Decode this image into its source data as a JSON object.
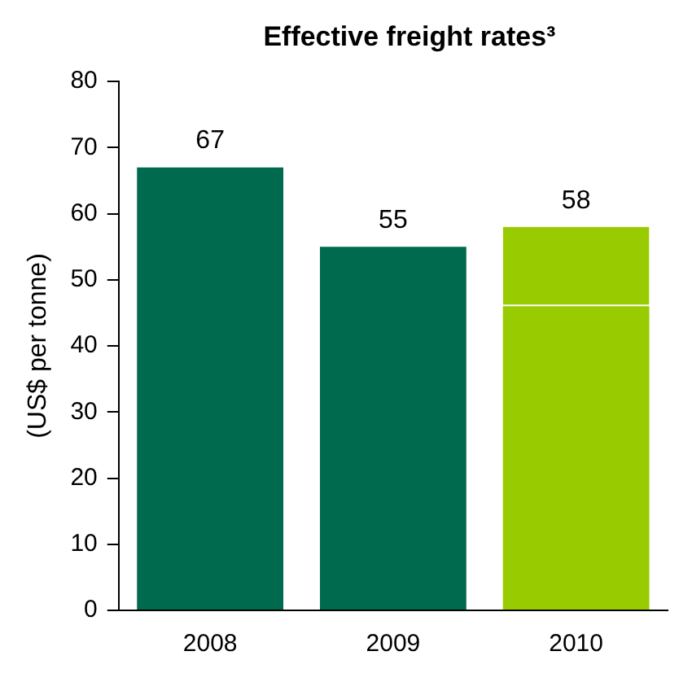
{
  "chart_data": {
    "type": "bar",
    "title": "Effective freight rates³",
    "ylabel": "(US$ per tonne)",
    "categories": [
      "2008",
      "2009",
      "2010"
    ],
    "stacked": true,
    "series": [
      {
        "colors": [
          "#006a4e",
          "#006a4e",
          "#99cc00"
        ],
        "values": [
          67,
          55,
          46
        ]
      },
      {
        "color": "#99cc00",
        "values": [
          null,
          null,
          12
        ]
      }
    ],
    "totals": [
      "67",
      "55",
      "58"
    ],
    "ylim": [
      0,
      80
    ],
    "yticks": [
      0,
      10,
      20,
      30,
      40,
      50,
      60,
      70,
      80
    ],
    "legend": false
  }
}
